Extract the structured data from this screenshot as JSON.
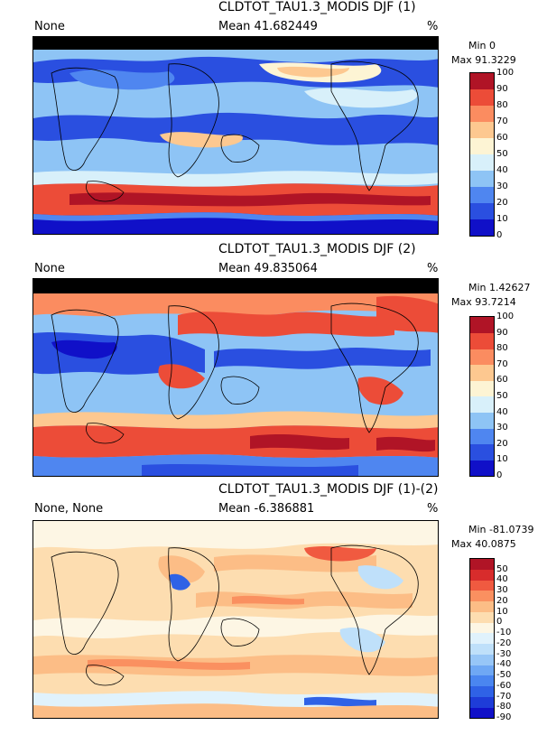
{
  "chart_data": [
    {
      "type": "heatmap",
      "title": "CLDTOT_TAU1.3_MODIS DJF (1)",
      "left_label": "None",
      "mean_label": "Mean 41.682449",
      "units": "%",
      "min_label": "Min 0",
      "max_label": "Max 91.3229",
      "colorbar_ticks": [
        "0",
        "10",
        "20",
        "30",
        "40",
        "50",
        "60",
        "70",
        "80",
        "90",
        "100"
      ],
      "colorbar_colors": [
        "#1010c8",
        "#2a4fe0",
        "#4f86f0",
        "#8ec4f5",
        "#d8f0fa",
        "#fdf4d4",
        "#fdc890",
        "#fb8c60",
        "#ec4c38",
        "#b01426"
      ]
    },
    {
      "type": "heatmap",
      "title": "CLDTOT_TAU1.3_MODIS DJF (2)",
      "left_label": "None",
      "mean_label": "Mean 49.835064",
      "units": "%",
      "min_label": "Min 1.42627",
      "max_label": "Max 93.7214",
      "colorbar_ticks": [
        "0",
        "10",
        "20",
        "30",
        "40",
        "50",
        "60",
        "70",
        "80",
        "90",
        "100"
      ],
      "colorbar_colors": [
        "#1010c8",
        "#2a4fe0",
        "#4f86f0",
        "#8ec4f5",
        "#d8f0fa",
        "#fdf4d4",
        "#fdc890",
        "#fb8c60",
        "#ec4c38",
        "#b01426"
      ]
    },
    {
      "type": "heatmap",
      "title": "CLDTOT_TAU1.3_MODIS DJF (1)-(2)",
      "left_label": "None, None",
      "mean_label": "Mean -6.386881",
      "units": "%",
      "min_label": "Min -81.0739",
      "max_label": "Max 40.0875",
      "colorbar_ticks": [
        "-90",
        "-80",
        "-70",
        "-60",
        "-50",
        "-40",
        "-30",
        "-20",
        "-10",
        "0",
        "10",
        "20",
        "30",
        "40",
        "50"
      ],
      "colorbar_colors": [
        "#1010c8",
        "#1e3cd8",
        "#2f62e6",
        "#4a86f0",
        "#6fa8f4",
        "#97c6f7",
        "#bfe0fa",
        "#e0f2fc",
        "#fdf6e4",
        "#fdddb0",
        "#fcbd86",
        "#fa9060",
        "#f05a40",
        "#d82c2c",
        "#b01426"
      ]
    }
  ]
}
